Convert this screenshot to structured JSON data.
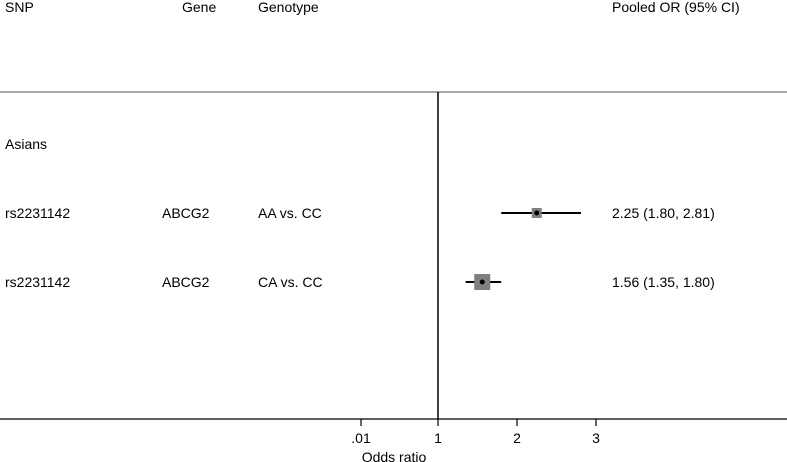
{
  "headers": {
    "snp": "SNP",
    "gene": "Gene",
    "genotype": "Genotype",
    "or": "Pooled OR (95% CI)"
  },
  "group_label": "Asians",
  "rows": [
    {
      "snp": "rs2231142",
      "gene": "ABCG2",
      "genotype": "AA vs. CC",
      "or_text": "2.25 (1.80, 2.81)"
    },
    {
      "snp": "rs2231142",
      "gene": "ABCG2",
      "genotype": "CA vs. CC",
      "or_text": "1.56 (1.35, 1.80)"
    }
  ],
  "chart_data": {
    "type": "forest",
    "xlabel": "Odds ratio",
    "ticks": [
      {
        "value": 0.01,
        "label": ".01"
      },
      {
        "value": 1,
        "label": "1"
      },
      {
        "value": 2,
        "label": "2"
      },
      {
        "value": 3,
        "label": "3"
      }
    ],
    "reference_line": 1,
    "points": [
      {
        "label": "AA vs. CC",
        "or": 2.25,
        "lower": 1.8,
        "upper": 2.81,
        "weight": 0.4
      },
      {
        "label": "CA vs. CC",
        "or": 1.56,
        "lower": 1.35,
        "upper": 1.8,
        "weight": 1.0
      }
    ],
    "colors": {
      "box": "#808080",
      "line": "#000000",
      "rule": "#8c8c8c"
    }
  }
}
